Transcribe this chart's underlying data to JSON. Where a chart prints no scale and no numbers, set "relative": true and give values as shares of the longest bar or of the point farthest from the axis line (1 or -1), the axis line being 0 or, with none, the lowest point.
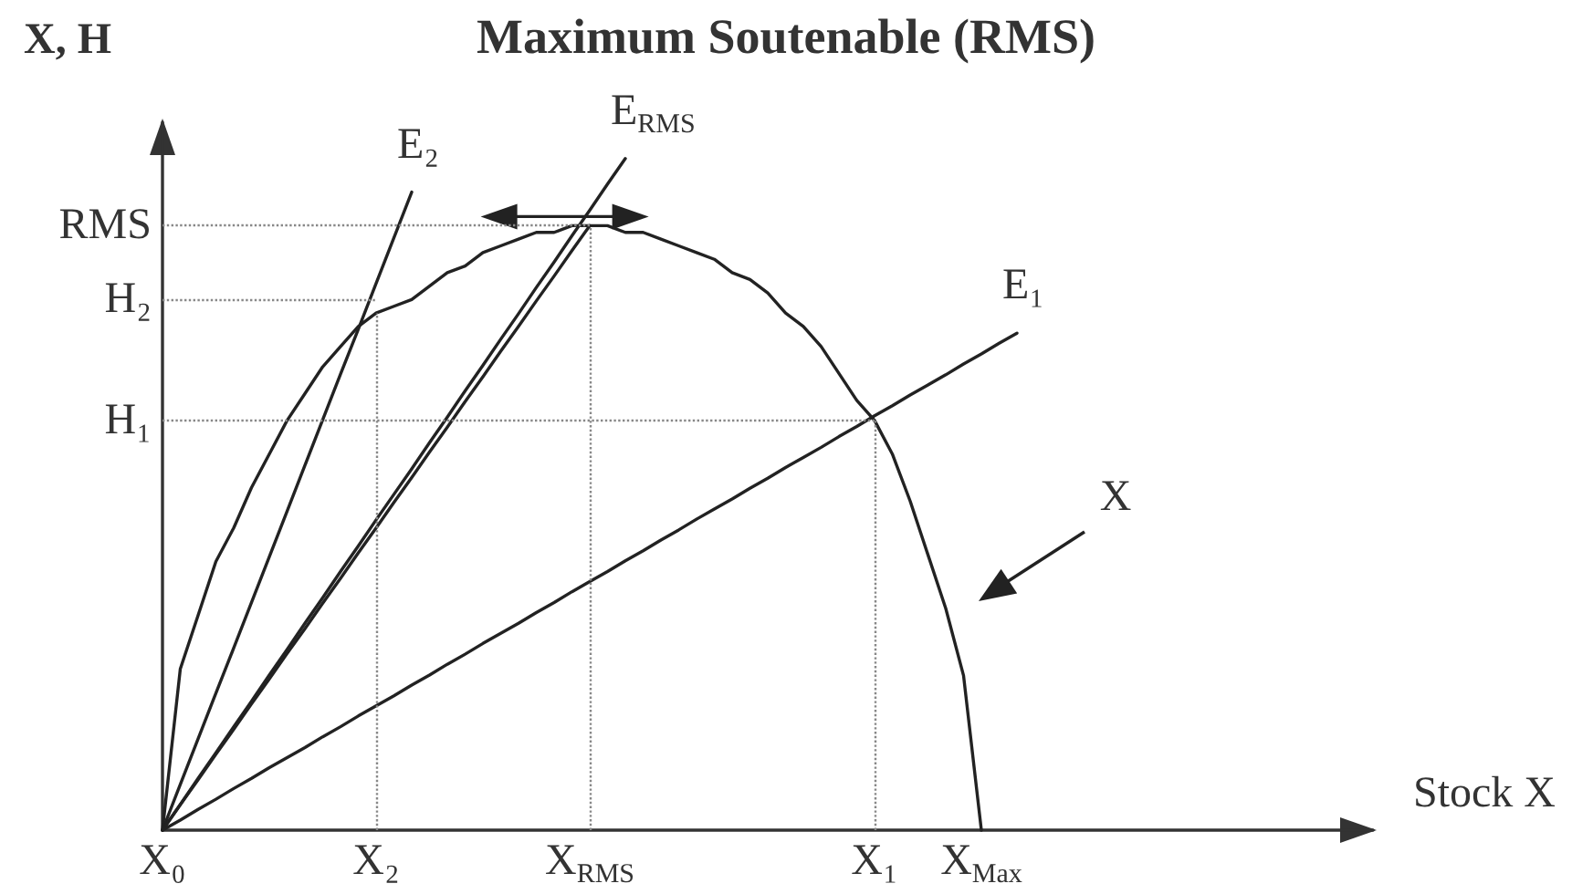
{
  "chart_data": {
    "type": "line",
    "title": "Maximum Soutenable (RMS)",
    "xlabel": "Stock X",
    "ylabel": "X, H",
    "relative": true,
    "categories": [
      "X₀",
      null,
      null,
      null,
      null,
      null,
      null,
      null,
      null,
      null,
      null,
      null,
      "X₂",
      null,
      null,
      null,
      null,
      null,
      null,
      null,
      null,
      null,
      null,
      null,
      "X$_{RMS}$",
      null,
      null,
      null,
      null,
      null,
      null,
      null,
      null,
      null,
      null,
      null,
      null,
      null,
      null,
      null,
      "X₁",
      null,
      null,
      null,
      null,
      null,
      "X$_{Max}$",
      null,
      null,
      null,
      null,
      null,
      null,
      null,
      null,
      null,
      null,
      null,
      null,
      null,
      null,
      null,
      null,
      null,
      null,
      null,
      null,
      null,
      null
    ],
    "series": [
      {
        "name": "X",
        "color": "#222222",
        "values": [
          0,
          0.24,
          0.32,
          0.4,
          0.45,
          0.51,
          0.56,
          0.61,
          0.65,
          0.69,
          0.72,
          0.75,
          0.77,
          0.78,
          0.79,
          0.81,
          0.83,
          0.84,
          0.86,
          0.87,
          0.88,
          0.89,
          0.89,
          0.9,
          0.9,
          0.9,
          0.89,
          0.89,
          0.88,
          0.87,
          0.86,
          0.85,
          0.83,
          0.82,
          0.8,
          0.77,
          0.75,
          0.72,
          0.68,
          0.64,
          0.61,
          0.56,
          0.49,
          0.41,
          0.33,
          0.23,
          0,
          null,
          null,
          null,
          null,
          null,
          null,
          null,
          null,
          null,
          null,
          null,
          null,
          null,
          null,
          null,
          null,
          null,
          null,
          null,
          null,
          null,
          null
        ]
      },
      {
        "name": "E₂",
        "color": "#222222",
        "values": [
          0,
          0.068,
          0.136,
          0.204,
          0.271,
          0.339,
          0.407,
          0.475,
          0.543,
          0.611,
          0.679,
          0.746,
          0.814,
          0.882,
          0.95,
          null,
          null,
          null,
          null,
          null,
          null,
          null,
          null,
          null,
          null,
          null,
          null,
          null,
          null,
          null,
          null,
          null,
          null,
          null,
          null,
          null,
          null,
          null,
          null,
          null,
          null,
          null,
          null,
          null,
          null,
          null,
          null,
          null,
          null,
          null,
          null,
          null,
          null,
          null,
          null,
          null,
          null,
          null,
          null,
          null,
          null,
          null,
          null,
          null,
          null,
          null,
          null,
          null,
          null
        ]
      },
      {
        "name": "E$_{RMS}$",
        "color": "#222222",
        "values": [
          0,
          0.038,
          0.077,
          0.115,
          0.154,
          0.192,
          0.231,
          0.269,
          0.308,
          0.346,
          0.385,
          0.423,
          0.462,
          0.5,
          0.538,
          0.577,
          0.615,
          0.654,
          0.692,
          0.731,
          0.769,
          0.808,
          0.846,
          0.885,
          0.923,
          0.962,
          1,
          null,
          null,
          null,
          null,
          null,
          null,
          null,
          null,
          null,
          null,
          null,
          null,
          null,
          null,
          null,
          null,
          null,
          null,
          null,
          null,
          null,
          null,
          null,
          null,
          null,
          null,
          null,
          null,
          null,
          null,
          null,
          null,
          null,
          null,
          null,
          null,
          null,
          null,
          null,
          null,
          null,
          null
        ]
      },
      {
        "color": "#222222",
        "values": [
          0,
          0.038,
          0.075,
          0.113,
          0.15,
          0.188,
          0.225,
          0.263,
          0.3,
          0.338,
          0.375,
          0.413,
          0.45,
          0.488,
          0.525,
          0.563,
          0.6,
          0.638,
          0.675,
          0.713,
          0.75,
          0.788,
          0.825,
          0.863,
          0.9,
          null,
          null,
          null,
          null,
          null,
          null,
          null,
          null,
          null,
          null,
          null,
          null,
          null,
          null,
          null,
          null,
          null,
          null,
          null,
          null,
          null,
          null,
          null,
          null,
          null,
          null,
          null,
          null,
          null,
          null,
          null,
          null,
          null,
          null,
          null,
          null,
          null,
          null,
          null,
          null,
          null,
          null,
          null,
          null
        ]
      },
      {
        "name": "E₁",
        "color": "#222222",
        "values": [
          0,
          0.015,
          0.031,
          0.046,
          0.062,
          0.077,
          0.093,
          0.108,
          0.123,
          0.139,
          0.154,
          0.17,
          0.185,
          0.2,
          0.216,
          0.231,
          0.247,
          0.262,
          0.278,
          0.293,
          0.308,
          0.324,
          0.339,
          0.355,
          0.37,
          0.385,
          0.401,
          0.416,
          0.432,
          0.447,
          0.463,
          0.478,
          0.493,
          0.509,
          0.524,
          0.54,
          0.555,
          0.57,
          0.586,
          0.601,
          0.617,
          0.632,
          0.648,
          0.663,
          0.678,
          0.694,
          0.709,
          0.725,
          0.74,
          null,
          null,
          null,
          null,
          null,
          null,
          null,
          null,
          null,
          null,
          null,
          null,
          null,
          null,
          null,
          null,
          null,
          null,
          null,
          null
        ]
      }
    ],
    "ref_lines": [
      {
        "axis": "y",
        "value": 0.9,
        "label": "RMS",
        "color": "#888888",
        "line_style": "dotted"
      },
      {
        "axis": "y",
        "value": 0.79,
        "label": "H₂",
        "color": "#888888",
        "line_style": "dotted"
      },
      {
        "axis": "y",
        "value": 0.61,
        "label": "H₁",
        "color": "#888888",
        "line_style": "dotted"
      },
      {
        "axis": "x",
        "value": "X₂",
        "color": "#888888",
        "line_style": "dotted"
      },
      {
        "axis": "x",
        "value": "X$_{RMS}$",
        "color": "#888888",
        "line_style": "dotted"
      },
      {
        "axis": "x",
        "value": "X₁",
        "color": "#888888",
        "line_style": "dotted"
      }
    ],
    "marker": "none",
    "line_style": "solid"
  }
}
